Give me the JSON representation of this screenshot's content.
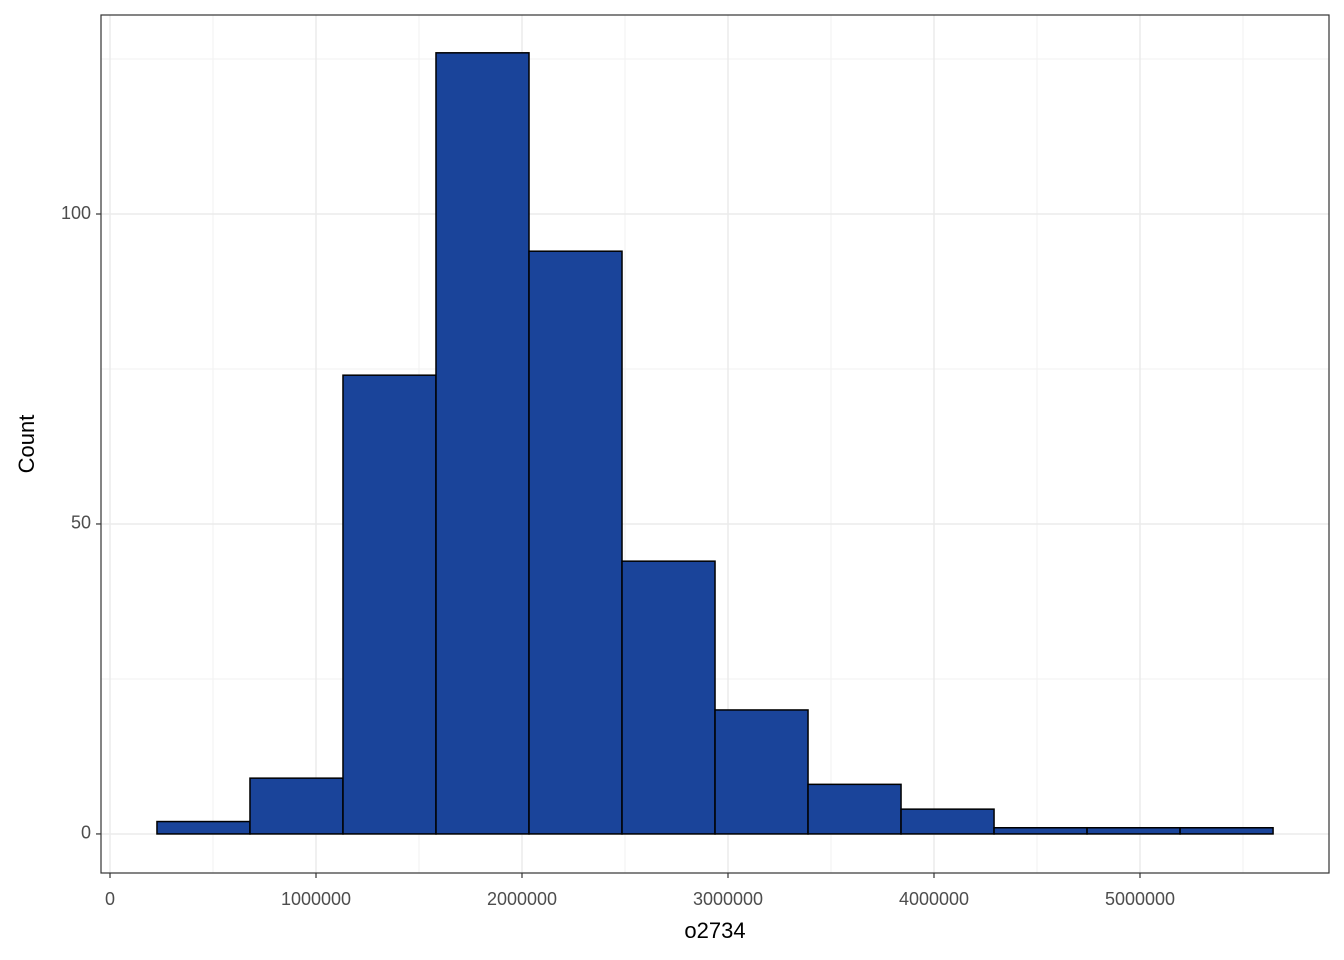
{
  "chart_data": {
    "type": "histogram",
    "x_label": "o2734",
    "y_label": "Count",
    "bins": [
      228000,
      679500,
      1131000,
      1582500,
      2034000,
      2485500,
      2937000,
      3388500,
      3840000,
      4291500,
      4743000,
      5194500,
      5646000
    ],
    "values": [
      2,
      9,
      74,
      126,
      94,
      44,
      20,
      8,
      4,
      1,
      1,
      1
    ],
    "color": "#1a449a",
    "edge_color": "#000000",
    "xlim": [
      -43700,
      5917500
    ],
    "ylim": [
      -6.3,
      132.1
    ],
    "xticks": [
      0,
      1000000,
      2000000,
      3000000,
      4000000,
      5000000
    ],
    "yticks": [
      0,
      50,
      100
    ],
    "grid": true
  }
}
